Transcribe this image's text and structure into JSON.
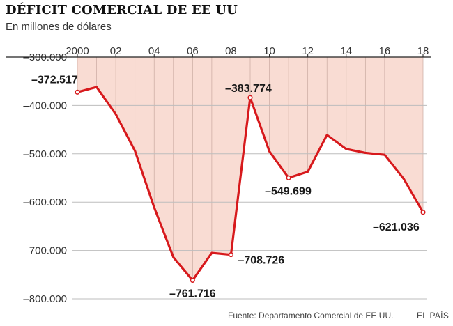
{
  "header": {
    "title": "DÉFICIT COMERCIAL DE EE UU",
    "subtitle": "En millones de dólares"
  },
  "footer": {
    "source": "Fuente: Departamento Comercial de EE UU.",
    "brand": "EL PAÍS"
  },
  "colors": {
    "line": "#d7191c",
    "fill": "#f9dcd3",
    "axis": "#222222",
    "grid": "#bdbdbd"
  },
  "chart_data": {
    "type": "area",
    "x": [
      2000,
      2001,
      2002,
      2003,
      2004,
      2005,
      2006,
      2007,
      2008,
      2009,
      2010,
      2011,
      2012,
      2013,
      2014,
      2015,
      2016,
      2017,
      2018
    ],
    "values": [
      -372517,
      -362000,
      -418000,
      -494000,
      -611000,
      -714000,
      -761716,
      -705000,
      -708726,
      -383774,
      -495000,
      -549699,
      -537000,
      -461000,
      -490000,
      -498000,
      -502000,
      -552000,
      -621036
    ],
    "xtick_values": [
      2000,
      2002,
      2004,
      2006,
      2008,
      2010,
      2012,
      2014,
      2016,
      2018
    ],
    "xtick_labels": [
      "2000",
      "02",
      "04",
      "06",
      "08",
      "10",
      "12",
      "14",
      "16",
      "18"
    ],
    "ytick_values": [
      -300000,
      -400000,
      -500000,
      -600000,
      -700000,
      -800000
    ],
    "ytick_labels": [
      "–300.000",
      "–400.000",
      "–500.000",
      "–600.000",
      "–700.000",
      "–800.000"
    ],
    "ylim": [
      -810000,
      -300000
    ],
    "xlim": [
      2000,
      2018
    ],
    "xaxis_position": "top",
    "grid": true,
    "annotations": [
      {
        "x": 2000,
        "y": -372517,
        "text": "–372.517",
        "anchor": "top-left"
      },
      {
        "x": 2006,
        "y": -761716,
        "text": "–761.716",
        "anchor": "below"
      },
      {
        "x": 2008,
        "y": -708726,
        "text": "–708.726",
        "anchor": "right"
      },
      {
        "x": 2009,
        "y": -383774,
        "text": "–383.774",
        "anchor": "above"
      },
      {
        "x": 2011,
        "y": -549699,
        "text": "–549.699",
        "anchor": "below"
      },
      {
        "x": 2018,
        "y": -621036,
        "text": "–621.036",
        "anchor": "below-left"
      }
    ]
  }
}
